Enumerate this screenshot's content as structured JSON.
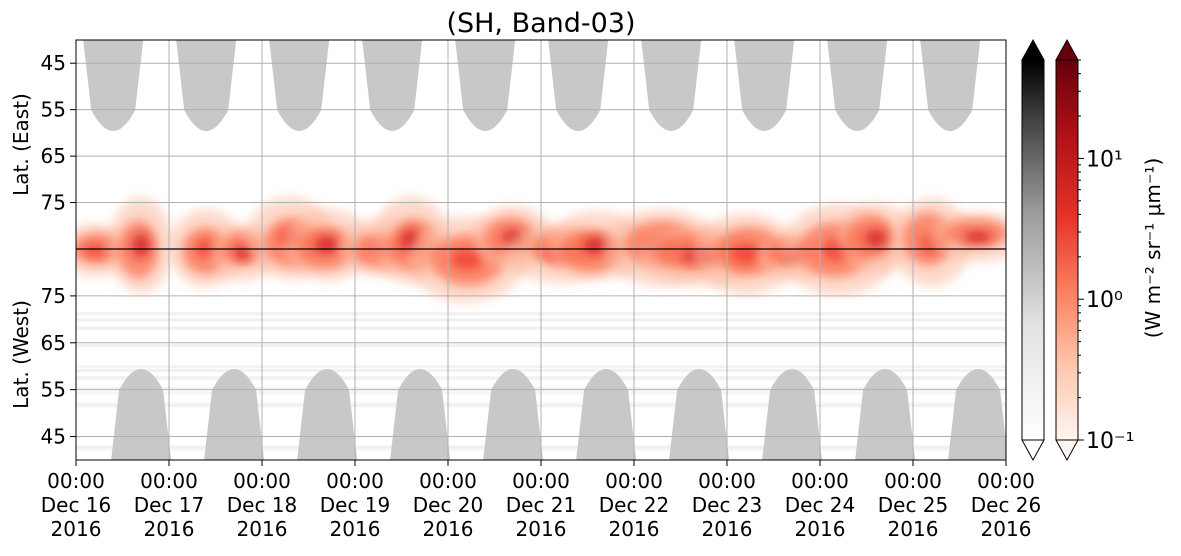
{
  "chart_data": {
    "type": "heatmap",
    "title": "(SH, Band-03)",
    "x_ticks": [
      {
        "time": "00:00",
        "date": "Dec 16",
        "year": "2016"
      },
      {
        "time": "00:00",
        "date": "Dec 17",
        "year": "2016"
      },
      {
        "time": "00:00",
        "date": "Dec 18",
        "year": "2016"
      },
      {
        "time": "00:00",
        "date": "Dec 19",
        "year": "2016"
      },
      {
        "time": "00:00",
        "date": "Dec 20",
        "year": "2016"
      },
      {
        "time": "00:00",
        "date": "Dec 21",
        "year": "2016"
      },
      {
        "time": "00:00",
        "date": "Dec 22",
        "year": "2016"
      },
      {
        "time": "00:00",
        "date": "Dec 23",
        "year": "2016"
      },
      {
        "time": "00:00",
        "date": "Dec 24",
        "year": "2016"
      },
      {
        "time": "00:00",
        "date": "Dec 25",
        "year": "2016"
      },
      {
        "time": "00:00",
        "date": "Dec 26",
        "year": "2016"
      }
    ],
    "xlim": [
      "2016-12-16T00:00",
      "2016-12-26T00:00"
    ],
    "y_panels": [
      {
        "label": "Lat. (East)",
        "ticks": [
          "45",
          "55",
          "65",
          "75"
        ],
        "range": [
          40,
          85
        ]
      },
      {
        "label": "Lat. (West)",
        "ticks": [
          "75",
          "65",
          "55",
          "45"
        ],
        "range": [
          85,
          40
        ]
      }
    ],
    "grid": true,
    "colorbar": {
      "label": "(W m⁻² sr⁻¹ μm⁻¹)",
      "scale": "log",
      "range": [
        0.1,
        50
      ],
      "ticks": [
        {
          "value": 10,
          "label": "10¹"
        },
        {
          "value": 1,
          "label": "10⁰"
        },
        {
          "value": 0.1,
          "label": "10⁻¹"
        }
      ],
      "extend": "both",
      "cmaps": [
        "Greys",
        "Reds"
      ]
    },
    "daylight_mask_color": "#c8c8c8",
    "emission_peak_days": [
      16.2,
      16.7,
      17.4,
      17.8,
      18.3,
      18.7,
      19.3,
      19.6,
      20.2,
      20.7,
      21.2,
      21.6,
      22.3,
      22.7,
      23.2,
      23.7,
      24.2,
      24.6,
      25.2,
      25.7
    ],
    "colors": {
      "accent": "#e64030",
      "line": "#000000",
      "grid": "#b0b0b0"
    }
  }
}
